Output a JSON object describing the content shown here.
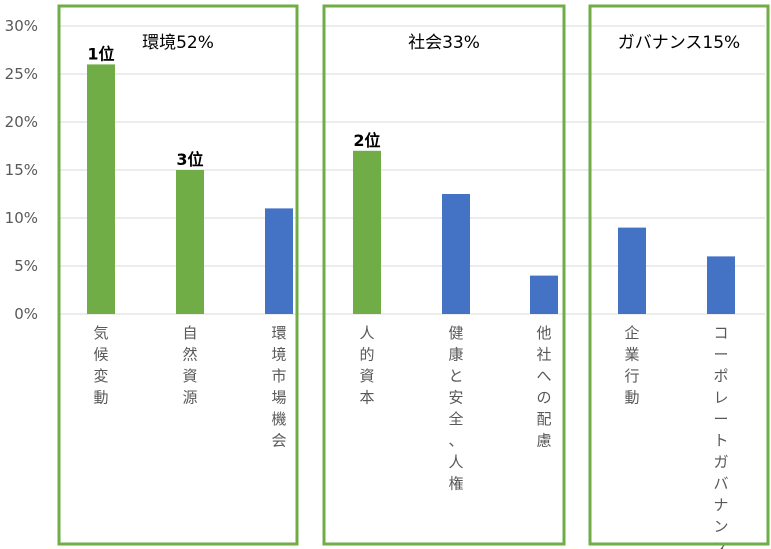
{
  "chart_data": {
    "type": "bar",
    "ylim": [
      0,
      30
    ],
    "yticks": [
      "0%",
      "5%",
      "10%",
      "15%",
      "20%",
      "25%",
      "30%"
    ],
    "grid": true,
    "colors": {
      "highlight": "#70ad47",
      "normal": "#4472c4",
      "frame": "#70ad47",
      "grid": "#d9d9d9"
    },
    "groups": [
      {
        "title": "環境52%",
        "categories": [
          "気候変動",
          "自然資源",
          "環境市場機会"
        ]
      },
      {
        "title": "社会33%",
        "categories": [
          "人的資本",
          "健康と安全、人権",
          "他社への配慮"
        ]
      },
      {
        "title": "ガバナンス15%",
        "categories": [
          "企業行動",
          "コーポレートガバナンス"
        ]
      }
    ],
    "bars": [
      {
        "category": "気候変動",
        "value": 26,
        "highlight": true,
        "label": "1位"
      },
      {
        "category": "自然資源",
        "value": 15,
        "highlight": true,
        "label": "3位"
      },
      {
        "category": "環境市場機会",
        "value": 11,
        "highlight": false,
        "label": ""
      },
      {
        "category": "人的資本",
        "value": 17,
        "highlight": true,
        "label": "2位"
      },
      {
        "category": "健康と安全、人権",
        "value": 12.5,
        "highlight": false,
        "label": ""
      },
      {
        "category": "他社への配慮",
        "value": 4,
        "highlight": false,
        "label": ""
      },
      {
        "category": "企業行動",
        "value": 9,
        "highlight": false,
        "label": ""
      },
      {
        "category": "コーポレートガバナンス",
        "value": 6,
        "highlight": false,
        "label": ""
      }
    ]
  }
}
